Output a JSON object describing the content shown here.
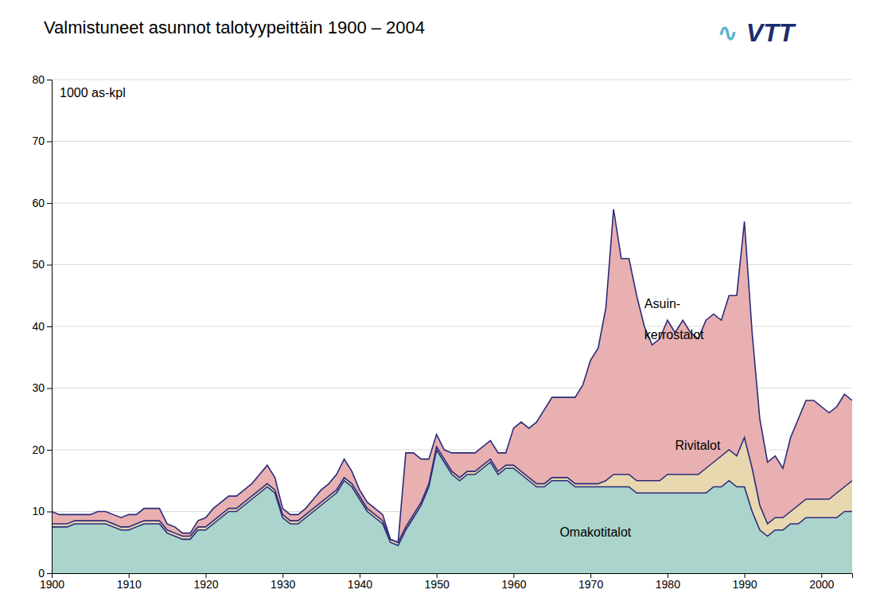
{
  "chart_data": {
    "type": "area",
    "stacked": true,
    "title": "Valmistuneet asunnot talotyypeittäin 1900 – 2004",
    "ylabel": "1000 as-kpl",
    "grid": true,
    "xlim": [
      1900,
      2004
    ],
    "xticks": [
      1900,
      1910,
      1920,
      1930,
      1940,
      1950,
      1960,
      1970,
      1980,
      1990,
      2000
    ],
    "ylim": [
      0,
      80
    ],
    "yticks": [
      0,
      10,
      20,
      30,
      40,
      50,
      60,
      70,
      80
    ],
    "x": [
      1900,
      1901,
      1902,
      1903,
      1904,
      1905,
      1906,
      1907,
      1908,
      1909,
      1910,
      1911,
      1912,
      1913,
      1914,
      1915,
      1916,
      1917,
      1918,
      1919,
      1920,
      1921,
      1922,
      1923,
      1924,
      1925,
      1926,
      1927,
      1928,
      1929,
      1930,
      1931,
      1932,
      1933,
      1934,
      1935,
      1936,
      1937,
      1938,
      1939,
      1940,
      1941,
      1942,
      1943,
      1944,
      1945,
      1946,
      1947,
      1948,
      1949,
      1950,
      1951,
      1952,
      1953,
      1954,
      1955,
      1956,
      1957,
      1958,
      1959,
      1960,
      1961,
      1962,
      1963,
      1964,
      1965,
      1966,
      1967,
      1968,
      1969,
      1970,
      1971,
      1972,
      1973,
      1974,
      1975,
      1976,
      1977,
      1978,
      1979,
      1980,
      1981,
      1982,
      1983,
      1984,
      1985,
      1986,
      1987,
      1988,
      1989,
      1990,
      1991,
      1992,
      1993,
      1994,
      1995,
      1996,
      1997,
      1998,
      1999,
      2000,
      2001,
      2002,
      2003,
      2004
    ],
    "series": [
      {
        "color": "#aad4cc",
        "values": [
          7.5,
          7.5,
          7.5,
          8,
          8,
          8,
          8,
          8,
          7.5,
          7,
          7,
          7.5,
          8,
          8,
          8,
          6.5,
          6,
          5.5,
          5.5,
          7,
          7,
          8,
          9,
          10,
          10,
          11,
          12,
          13,
          14,
          13,
          9,
          8,
          8,
          9,
          10,
          11,
          12,
          13,
          15,
          14,
          12,
          10,
          9,
          8,
          5,
          4.5,
          7,
          9,
          11,
          14,
          20,
          18,
          16,
          15,
          16,
          16,
          17,
          18,
          16,
          17,
          17,
          16,
          15,
          14,
          14,
          15,
          15,
          15,
          14,
          14,
          14,
          14,
          14,
          14,
          14,
          14,
          13,
          13,
          13,
          13,
          13,
          13,
          13,
          13,
          13,
          13,
          14,
          14,
          15,
          14,
          14,
          10,
          7,
          6,
          7,
          7,
          8,
          8,
          9,
          9,
          9,
          9,
          9,
          10,
          10
        ]
      },
      {
        "color": "#e8d8b0",
        "values": [
          0.5,
          0.5,
          0.5,
          0.5,
          0.5,
          0.5,
          0.5,
          0.5,
          0.5,
          0.5,
          0.5,
          0.5,
          0.5,
          0.5,
          0.5,
          0.5,
          0.5,
          0.5,
          0.5,
          0.5,
          0.5,
          0.5,
          0.5,
          0.5,
          0.5,
          0.5,
          0.5,
          0.5,
          0.5,
          0.5,
          0.5,
          0.5,
          0.5,
          0.5,
          0.5,
          0.5,
          0.5,
          0.5,
          0.5,
          0.5,
          0.5,
          0.5,
          0.5,
          0.5,
          0.5,
          0.5,
          0.5,
          0.5,
          0.5,
          0.5,
          0.5,
          0.5,
          0.5,
          0.5,
          0.5,
          0.5,
          0.5,
          0.5,
          0.5,
          0.5,
          0.5,
          0.5,
          0.5,
          0.5,
          0.5,
          0.5,
          0.5,
          0.5,
          0.5,
          0.5,
          0.5,
          0.5,
          1,
          2,
          2,
          2,
          2,
          2,
          2,
          2,
          3,
          3,
          3,
          3,
          3,
          4,
          4,
          5,
          5,
          5,
          8,
          7,
          4,
          2,
          2,
          2,
          2,
          3,
          3,
          3,
          3,
          3,
          4,
          4,
          5
        ]
      },
      {
        "color": "#e8b0b0",
        "values": [
          2,
          1.5,
          1.5,
          1,
          1,
          1,
          1.5,
          1.5,
          1.5,
          1.5,
          2,
          1.5,
          2,
          2,
          2,
          1,
          1,
          0.5,
          0.5,
          1,
          1.5,
          2,
          2,
          2,
          2,
          2,
          2,
          2.5,
          3,
          2,
          1,
          1,
          1,
          1,
          1.5,
          2,
          2,
          2.5,
          3,
          2,
          1,
          1,
          1,
          1,
          0,
          0,
          12,
          10,
          7,
          4,
          2,
          1.5,
          3,
          4,
          3,
          3,
          3,
          3,
          3,
          2,
          6,
          8,
          8,
          10,
          12,
          13,
          13,
          13,
          14,
          16,
          20,
          22,
          28,
          43,
          35,
          35,
          30,
          25,
          22,
          23,
          25,
          23,
          25,
          23,
          22,
          24,
          24,
          22,
          25,
          26,
          35,
          22,
          14,
          10,
          10,
          8,
          12,
          14,
          16,
          16,
          15,
          14,
          14,
          15,
          13
        ]
      }
    ],
    "annotations": [
      {
        "text": "Asuin-",
        "x": 1977,
        "y": 43
      },
      {
        "text": "kerrostalot",
        "x": 1977,
        "y": 38
      },
      {
        "text": "Rivitalot",
        "x": 1981,
        "y": 20
      },
      {
        "text": "Omakotitalot",
        "x": 1966,
        "y": 6
      },
      {
        "text": "∿",
        "color": "#5ab4d0"
      },
      {
        "text": "VTT",
        "color": "#1a2d6e"
      }
    ]
  }
}
